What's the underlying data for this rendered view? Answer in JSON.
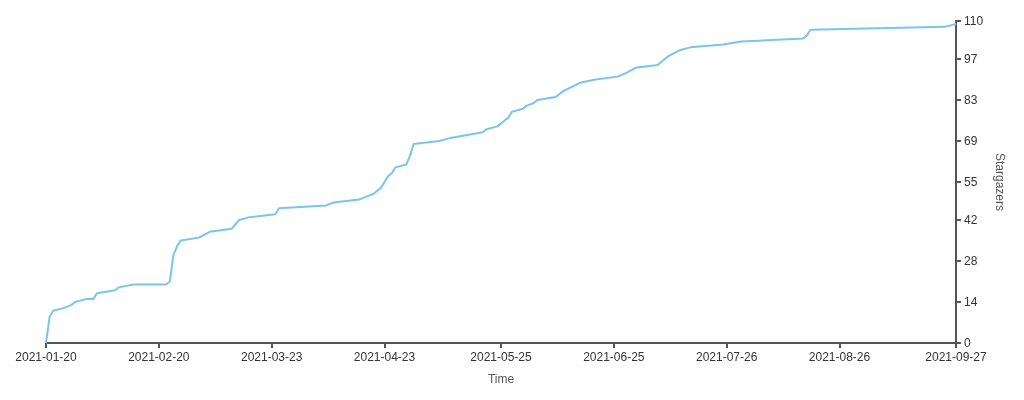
{
  "chart_data": {
    "type": "line",
    "xlabel": "Time",
    "ylabel": "Stargazers",
    "color": "#7cc3ee",
    "marker": "none",
    "grid": false,
    "x": [
      "2021-01-20",
      "2021-01-21",
      "2021-01-22",
      "2021-01-25",
      "2021-01-27",
      "2021-01-28",
      "2021-01-31",
      "2021-02-02",
      "2021-02-03",
      "2021-02-08",
      "2021-02-09",
      "2021-02-13",
      "2021-02-22",
      "2021-02-23",
      "2021-02-24",
      "2021-02-25",
      "2021-02-26",
      "2021-03-03",
      "2021-03-06",
      "2021-03-12",
      "2021-03-14",
      "2021-03-17",
      "2021-03-24",
      "2021-03-25",
      "2021-04-07",
      "2021-04-09",
      "2021-04-16",
      "2021-04-18",
      "2021-04-20",
      "2021-04-22",
      "2021-04-23",
      "2021-04-24",
      "2021-04-25",
      "2021-04-26",
      "2021-04-29",
      "2021-04-30",
      "2021-05-01",
      "2021-05-08",
      "2021-05-11",
      "2021-05-20",
      "2021-05-21",
      "2021-05-24",
      "2021-05-25",
      "2021-05-26",
      "2021-05-27",
      "2021-05-28",
      "2021-05-31",
      "2021-06-01",
      "2021-06-03",
      "2021-06-04",
      "2021-06-09",
      "2021-06-11",
      "2021-06-16",
      "2021-06-20",
      "2021-06-26",
      "2021-06-28",
      "2021-07-01",
      "2021-07-07",
      "2021-07-08",
      "2021-07-09",
      "2021-07-10",
      "2021-07-13",
      "2021-07-16",
      "2021-07-25",
      "2021-07-30",
      "2021-08-16",
      "2021-08-17",
      "2021-08-18",
      "2021-09-24",
      "2021-09-27"
    ],
    "values": [
      0,
      9,
      11,
      12,
      13,
      14,
      15,
      15,
      17,
      18,
      19,
      20,
      20,
      21,
      30,
      33,
      35,
      36,
      38,
      39,
      42,
      43,
      44,
      46,
      47,
      48,
      49,
      50,
      51,
      53,
      55,
      57,
      58,
      60,
      61,
      64,
      68,
      69,
      70,
      72,
      73,
      74,
      75,
      76,
      77,
      79,
      80,
      81,
      82,
      83,
      84,
      86,
      89,
      90,
      91,
      92,
      94,
      95,
      96,
      97,
      98,
      100,
      101,
      102,
      103,
      104,
      105,
      107,
      108,
      109
    ],
    "xlim": [
      "2021-01-20",
      "2021-09-27"
    ],
    "xticks": [
      "2021-01-20",
      "2021-02-20",
      "2021-03-23",
      "2021-04-23",
      "2021-05-25",
      "2021-06-25",
      "2021-07-26",
      "2021-08-26",
      "2021-09-27"
    ],
    "ylim": [
      0,
      110
    ],
    "yticks": [
      0,
      14,
      28,
      42,
      55,
      69,
      83,
      97,
      110
    ]
  }
}
